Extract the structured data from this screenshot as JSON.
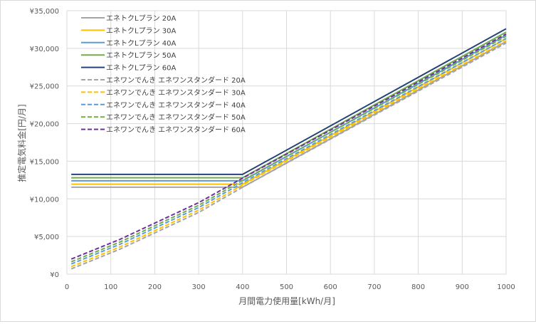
{
  "chart_data": {
    "type": "line",
    "xlabel": "月間電力使用量[kWh/月]",
    "ylabel": "推定電気料金[円/月]",
    "xlim": [
      0,
      1000
    ],
    "ylim": [
      0,
      35000
    ],
    "xticks": [
      0,
      100,
      200,
      300,
      400,
      500,
      600,
      700,
      800,
      900,
      1000
    ],
    "yticks": [
      0,
      5000,
      10000,
      15000,
      20000,
      25000,
      30000,
      35000
    ],
    "ytick_labels": [
      "¥0",
      "¥5,000",
      "¥10,000",
      "¥15,000",
      "¥20,000",
      "¥25,000",
      "¥30,000",
      "¥35,000"
    ],
    "xtick_labels": [
      "0",
      "100",
      "200",
      "300",
      "400",
      "500",
      "600",
      "700",
      "800",
      "900",
      "1000"
    ],
    "grid": true,
    "legend_position": "top-left",
    "series": [
      {
        "name": "エネトクLプラン 20A",
        "color": "#a5a5a5",
        "dash": false,
        "x": [
          10,
          400,
          1000
        ],
        "y": [
          11550,
          11550,
          30900
        ]
      },
      {
        "name": "エネトクLプラン 30A",
        "color": "#ffc000",
        "dash": false,
        "x": [
          10,
          400,
          1000
        ],
        "y": [
          11950,
          11950,
          31300
        ]
      },
      {
        "name": "エネトクLプラン 40A",
        "color": "#5b9bd5",
        "dash": false,
        "x": [
          10,
          400,
          1000
        ],
        "y": [
          12400,
          12400,
          31750
        ]
      },
      {
        "name": "エネトクLプラン 50A",
        "color": "#70ad47",
        "dash": false,
        "x": [
          10,
          400,
          1000
        ],
        "y": [
          12800,
          12800,
          32150
        ]
      },
      {
        "name": "エネトクLプラン 60A",
        "color": "#264478",
        "dash": false,
        "x": [
          10,
          400,
          1000
        ],
        "y": [
          13250,
          13250,
          32600
        ]
      },
      {
        "name": "エネワンでんき エネワンスタンダード 20A",
        "color": "#a5a5a5",
        "dash": true,
        "x": [
          10,
          120,
          300,
          400,
          1000
        ],
        "y": [
          700,
          3300,
          8200,
          11550,
          30700
        ]
      },
      {
        "name": "エネワンでんき エネワンスタンダード 30A",
        "color": "#ffc000",
        "dash": true,
        "x": [
          10,
          120,
          300,
          400,
          1000
        ],
        "y": [
          1000,
          3600,
          8500,
          11850,
          31000
        ]
      },
      {
        "name": "エネワンでんき エネワンスタンダード 40A",
        "color": "#5b9bd5",
        "dash": true,
        "x": [
          10,
          120,
          300,
          400,
          1000
        ],
        "y": [
          1350,
          3950,
          8850,
          12150,
          31300
        ]
      },
      {
        "name": "エネワンでんき エネワンスタンダード 50A",
        "color": "#70ad47",
        "dash": true,
        "x": [
          10,
          120,
          300,
          400,
          1000
        ],
        "y": [
          1650,
          4250,
          9150,
          12450,
          31600
        ]
      },
      {
        "name": "エネワンでんき エネワンスタンダード 60A",
        "color": "#7030a0",
        "dash": true,
        "x": [
          10,
          120,
          300,
          400,
          1000
        ],
        "y": [
          2000,
          4600,
          9500,
          12750,
          31900
        ]
      }
    ]
  }
}
